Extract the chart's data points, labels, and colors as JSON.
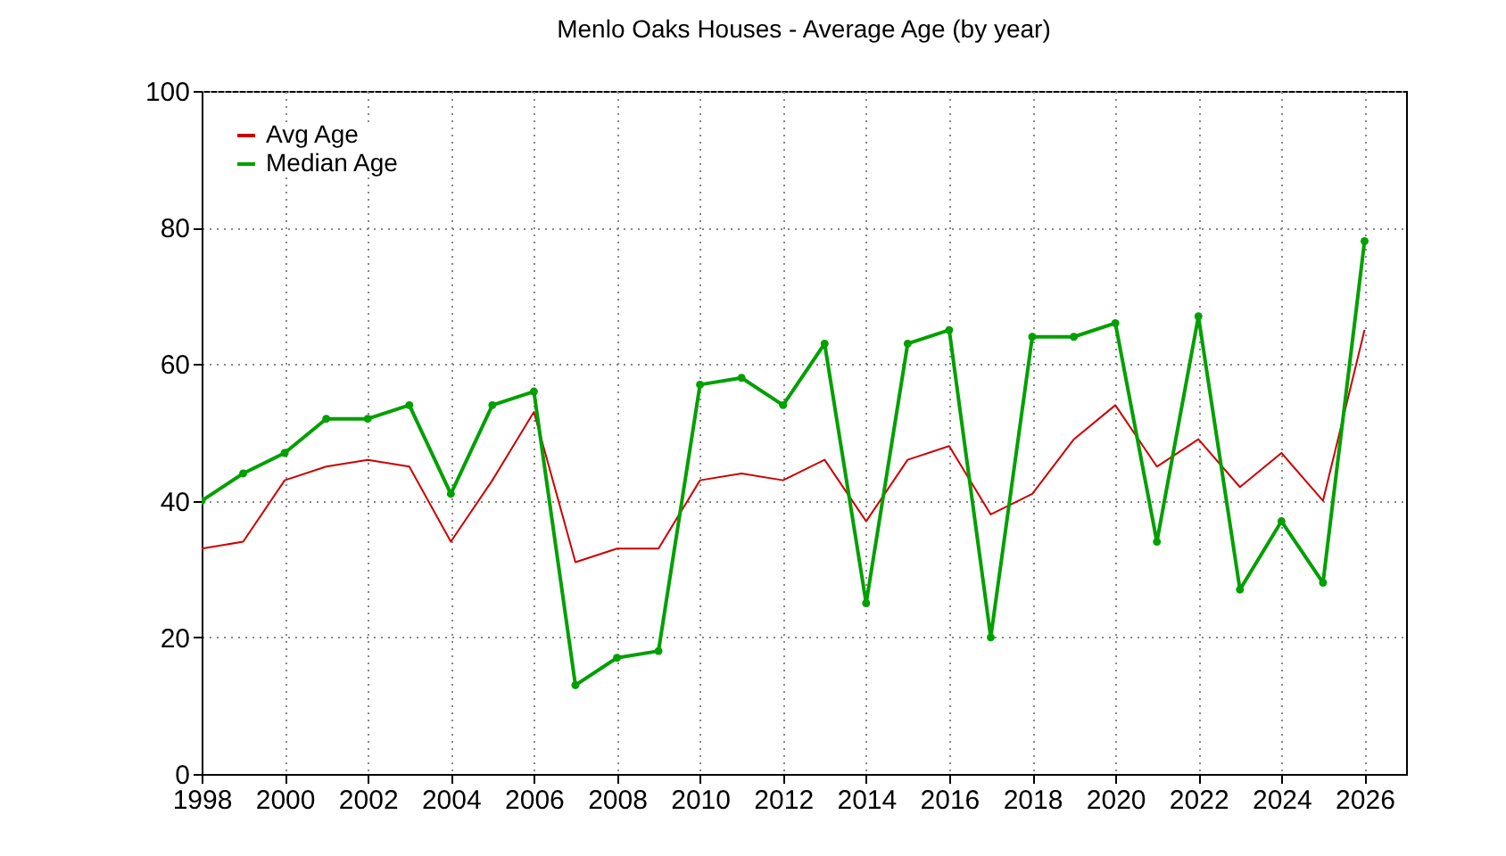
{
  "chart_data": {
    "type": "line",
    "title": "Menlo Oaks Houses - Average Age (by year)",
    "x": [
      1998,
      1999,
      2000,
      2001,
      2002,
      2003,
      2004,
      2005,
      2006,
      2007,
      2008,
      2009,
      2010,
      2011,
      2012,
      2013,
      2014,
      2015,
      2016,
      2017,
      2018,
      2019,
      2020,
      2021,
      2022,
      2023,
      2024,
      2025,
      2026
    ],
    "series": [
      {
        "name": "Avg Age",
        "color": "#cc0000",
        "marker": "none",
        "values": [
          33,
          34,
          43,
          45,
          46,
          45,
          34,
          43,
          53,
          31,
          33,
          33,
          43,
          44,
          43,
          46,
          37,
          46,
          48,
          38,
          41,
          49,
          54,
          45,
          49,
          42,
          47,
          40,
          65
        ]
      },
      {
        "name": "Median Age",
        "color": "#00a000",
        "marker": "circle",
        "values": [
          40,
          44,
          47,
          52,
          52,
          54,
          41,
          54,
          56,
          13,
          17,
          18,
          57,
          58,
          54,
          63,
          25,
          63,
          65,
          20,
          64,
          64,
          66,
          34,
          67,
          27,
          37,
          28,
          78
        ]
      }
    ],
    "xlim": [
      1998,
      2027
    ],
    "xticks": [
      1998,
      2000,
      2002,
      2004,
      2006,
      2008,
      2010,
      2012,
      2014,
      2016,
      2018,
      2020,
      2022,
      2024,
      2026
    ],
    "ylim": [
      0,
      100
    ],
    "yticks": [
      0,
      20,
      40,
      60,
      80,
      100
    ],
    "grid": true,
    "legend": "top left"
  }
}
